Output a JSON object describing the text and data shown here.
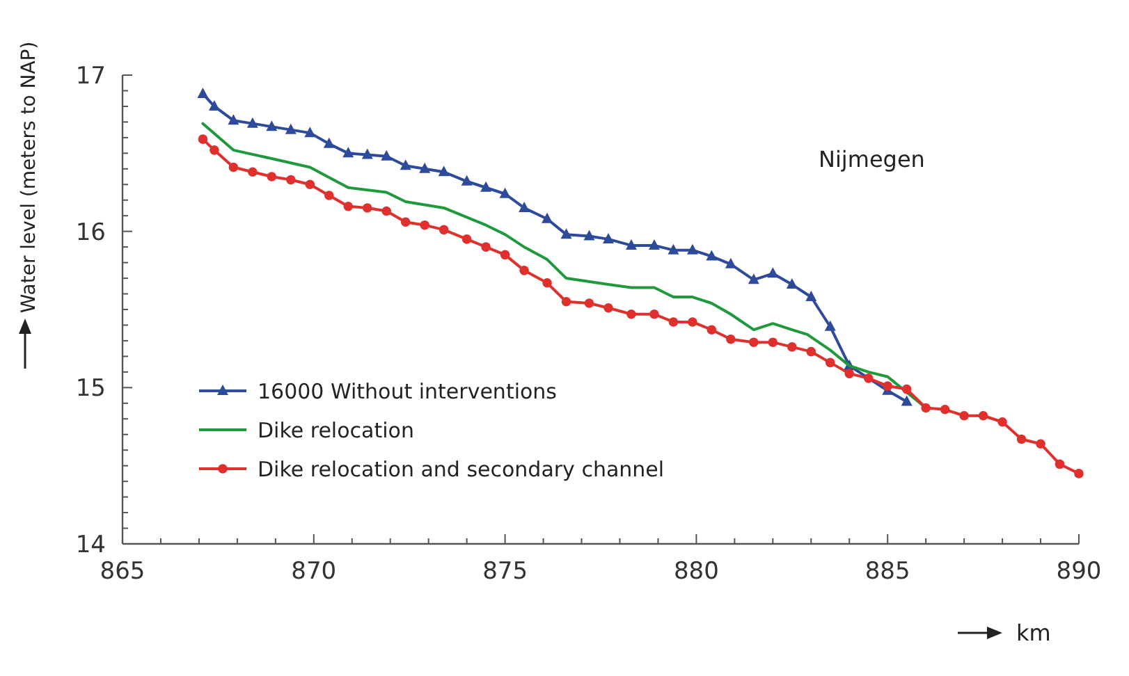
{
  "chart_data": {
    "type": "line",
    "xlabel": "km",
    "ylabel": "Water level (meters to NAP)",
    "annotations": [
      "Nijmegen"
    ],
    "xlim": [
      865,
      890
    ],
    "ylim": [
      14,
      17
    ],
    "xticks": [
      865,
      {
        "value": 866,
        "label": null
      },
      {
        "value": 867,
        "label": null
      },
      {
        "value": 868,
        "label": null
      },
      {
        "value": 869,
        "label": null
      },
      870,
      {
        "value": 871,
        "label": null
      },
      {
        "value": 872,
        "label": null
      },
      {
        "value": 873,
        "label": null
      },
      {
        "value": 874,
        "label": null
      },
      875,
      {
        "value": 876,
        "label": null
      },
      {
        "value": 877,
        "label": null
      },
      {
        "value": 878,
        "label": null
      },
      {
        "value": 879,
        "label": null
      },
      880,
      {
        "value": 881,
        "label": null
      },
      {
        "value": 882,
        "label": null
      },
      {
        "value": 883,
        "label": null
      },
      {
        "value": 884,
        "label": null
      },
      885,
      {
        "value": 886,
        "label": null
      },
      {
        "value": 887,
        "label": null
      },
      {
        "value": 888,
        "label": null
      },
      {
        "value": 889,
        "label": null
      },
      890
    ],
    "yticks": [
      14,
      {
        "value": 14.1,
        "label": null
      },
      {
        "value": 14.2,
        "label": null
      },
      {
        "value": 14.3,
        "label": null
      },
      {
        "value": 14.4,
        "label": null
      },
      {
        "value": 14.5,
        "label": null
      },
      {
        "value": 14.6,
        "label": null
      },
      {
        "value": 14.7,
        "label": null
      },
      {
        "value": 14.8,
        "label": null
      },
      {
        "value": 14.9,
        "label": null
      },
      15,
      {
        "value": 15.1,
        "label": null
      },
      {
        "value": 15.2,
        "label": null
      },
      {
        "value": 15.3,
        "label": null
      },
      {
        "value": 15.4,
        "label": null
      },
      {
        "value": 15.5,
        "label": null
      },
      {
        "value": 15.6,
        "label": null
      },
      {
        "value": 15.7,
        "label": null
      },
      {
        "value": 15.8,
        "label": null
      },
      {
        "value": 15.9,
        "label": null
      },
      16,
      {
        "value": 16.1,
        "label": null
      },
      {
        "value": 16.2,
        "label": null
      },
      {
        "value": 16.3,
        "label": null
      },
      {
        "value": 16.4,
        "label": null
      },
      {
        "value": 16.5,
        "label": null
      },
      {
        "value": 16.6,
        "label": null
      },
      {
        "value": 16.7,
        "label": null
      },
      {
        "value": 16.8,
        "label": null
      },
      {
        "value": 16.9,
        "label": null
      },
      17
    ],
    "grid": false,
    "legend": "bottom left",
    "line_style": "solid",
    "series": [
      {
        "name": "16000 Without interventions",
        "color": "#2e4a9a",
        "marker": "triangle",
        "x": [
          867.1,
          867.4,
          867.9,
          868.4,
          868.9,
          869.4,
          869.9,
          870.4,
          870.9,
          871.4,
          871.9,
          872.4,
          872.9,
          873.4,
          874.0,
          874.5,
          875.0,
          875.5,
          876.1,
          876.6,
          877.2,
          877.7,
          878.3,
          878.9,
          879.4,
          879.9,
          880.4,
          880.9,
          881.5,
          882.0,
          882.5,
          883.0,
          883.5,
          884.0,
          885.0,
          885.5
        ],
        "values": [
          16.88,
          16.8,
          16.71,
          16.69,
          16.67,
          16.65,
          16.63,
          16.56,
          16.5,
          16.49,
          16.48,
          16.42,
          16.4,
          16.38,
          16.32,
          16.28,
          16.24,
          16.15,
          16.08,
          15.98,
          15.97,
          15.95,
          15.91,
          15.91,
          15.88,
          15.88,
          15.84,
          15.79,
          15.69,
          15.73,
          15.66,
          15.58,
          15.39,
          15.14,
          14.98,
          14.91
        ]
      },
      {
        "name": "Dike relocation",
        "color": "#1e9a3c",
        "marker": "none",
        "x": [
          867.1,
          867.9,
          869.0,
          869.9,
          870.9,
          871.9,
          872.4,
          873.4,
          874.5,
          875.0,
          875.5,
          876.1,
          876.6,
          877.7,
          878.3,
          878.9,
          879.4,
          879.9,
          880.4,
          880.9,
          881.5,
          882.0,
          882.5,
          882.9,
          883.5,
          884.0,
          884.5,
          885.0,
          885.5,
          886.0
        ],
        "values": [
          16.69,
          16.52,
          16.46,
          16.41,
          16.28,
          16.25,
          16.19,
          16.15,
          16.04,
          15.98,
          15.9,
          15.82,
          15.7,
          15.66,
          15.64,
          15.64,
          15.58,
          15.58,
          15.54,
          15.47,
          15.37,
          15.41,
          15.37,
          15.34,
          15.24,
          15.14,
          15.1,
          15.07,
          14.97,
          14.87
        ]
      },
      {
        "name": "Dike relocation and secondary channel",
        "color": "#e0302e",
        "marker": "circle",
        "x": [
          867.1,
          867.4,
          867.9,
          868.4,
          868.9,
          869.4,
          869.9,
          870.4,
          870.9,
          871.4,
          871.9,
          872.4,
          872.9,
          873.4,
          874.0,
          874.5,
          875.0,
          875.5,
          876.1,
          876.6,
          877.2,
          877.7,
          878.3,
          878.9,
          879.4,
          879.9,
          880.4,
          880.9,
          881.5,
          882.0,
          882.5,
          883.0,
          883.5,
          884.0,
          884.5,
          885.0,
          885.5,
          886.0,
          886.5,
          887.0,
          887.5,
          888.0,
          888.5,
          889.0,
          889.5,
          890.0
        ],
        "values": [
          16.59,
          16.52,
          16.41,
          16.38,
          16.35,
          16.33,
          16.3,
          16.23,
          16.16,
          16.15,
          16.13,
          16.06,
          16.04,
          16.01,
          15.95,
          15.9,
          15.85,
          15.75,
          15.67,
          15.55,
          15.54,
          15.51,
          15.47,
          15.47,
          15.42,
          15.42,
          15.37,
          15.31,
          15.29,
          15.29,
          15.26,
          15.23,
          15.16,
          15.09,
          15.06,
          15.01,
          14.99,
          14.87,
          14.86,
          14.82,
          14.82,
          14.78,
          14.67,
          14.64,
          14.51,
          14.45
        ]
      }
    ]
  }
}
